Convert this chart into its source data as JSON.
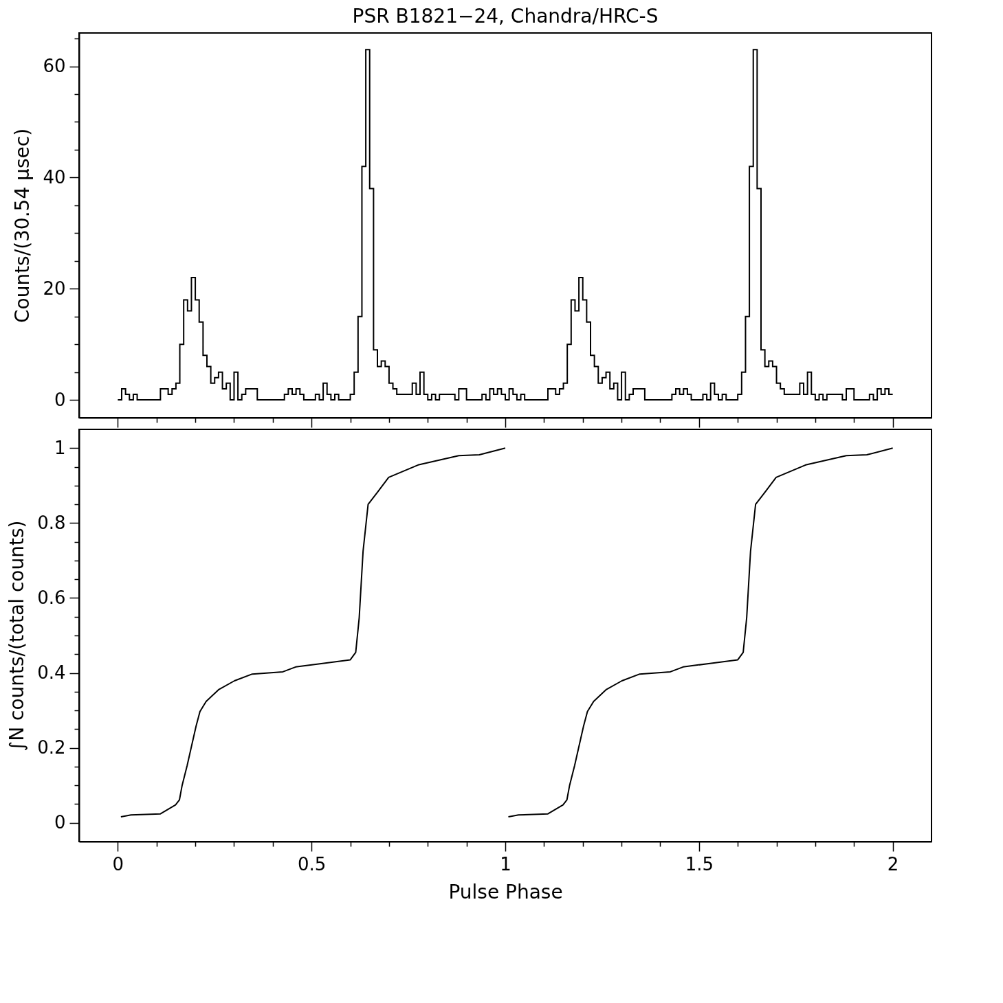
{
  "chart_data": [
    {
      "type": "histogram",
      "title": "PSR B1821−24, Chandra/HRC-S",
      "ylabel": "Counts/(30.54 μsec)",
      "color": "#000000",
      "bins": [
        0,
        0.01,
        0.02,
        0.03,
        0.04,
        0.05,
        0.06,
        0.07,
        0.08,
        0.09,
        0.1,
        0.11,
        0.12,
        0.13,
        0.14,
        0.15,
        0.16,
        0.17,
        0.18,
        0.19,
        0.2,
        0.21,
        0.22,
        0.23,
        0.24,
        0.25,
        0.26,
        0.27,
        0.28,
        0.29,
        0.3,
        0.31,
        0.32,
        0.33,
        0.34,
        0.35,
        0.36,
        0.37,
        0.38,
        0.39,
        0.4,
        0.41,
        0.42,
        0.43,
        0.44,
        0.45,
        0.46,
        0.47,
        0.48,
        0.49,
        0.5,
        0.51,
        0.52,
        0.53,
        0.54,
        0.55,
        0.56,
        0.57,
        0.58,
        0.59,
        0.6,
        0.61,
        0.62,
        0.63,
        0.64,
        0.65,
        0.66,
        0.67,
        0.68,
        0.69,
        0.7,
        0.71,
        0.72,
        0.73,
        0.74,
        0.75,
        0.76,
        0.77,
        0.78,
        0.79,
        0.8,
        0.81,
        0.82,
        0.83,
        0.84,
        0.85,
        0.86,
        0.87,
        0.88,
        0.89,
        0.9,
        0.91,
        0.92,
        0.93,
        0.94,
        0.95,
        0.96,
        0.97,
        0.98,
        0.99,
        1,
        1.01,
        1.02,
        1.03,
        1.04,
        1.05,
        1.06,
        1.07,
        1.08,
        1.09,
        1.1,
        1.11,
        1.12,
        1.13,
        1.14,
        1.15,
        1.16,
        1.17,
        1.18,
        1.19,
        1.2,
        1.21,
        1.22,
        1.23,
        1.24,
        1.25,
        1.26,
        1.27,
        1.28,
        1.29,
        1.3,
        1.31,
        1.32,
        1.33,
        1.34,
        1.35,
        1.36,
        1.37,
        1.38,
        1.39,
        1.4,
        1.41,
        1.42,
        1.43,
        1.44,
        1.45,
        1.46,
        1.47,
        1.48,
        1.49,
        1.5,
        1.51,
        1.52,
        1.53,
        1.54,
        1.55,
        1.56,
        1.57,
        1.58,
        1.59,
        1.6,
        1.61,
        1.62,
        1.63,
        1.64,
        1.65,
        1.66,
        1.67,
        1.68,
        1.69,
        1.7,
        1.71,
        1.72,
        1.73,
        1.74,
        1.75,
        1.76,
        1.77,
        1.78,
        1.79,
        1.8,
        1.81,
        1.82,
        1.83,
        1.84,
        1.85,
        1.86,
        1.87,
        1.88,
        1.89,
        1.9,
        1.91,
        1.92,
        1.93,
        1.94,
        1.95,
        1.96,
        1.97,
        1.98,
        1.99,
        2
      ],
      "values": [
        0,
        2,
        1,
        0,
        1,
        0,
        0,
        0,
        0,
        0,
        0,
        2,
        2,
        1,
        2,
        3,
        10,
        18,
        16,
        22,
        18,
        14,
        8,
        6,
        3,
        4,
        5,
        2,
        3,
        0,
        5,
        0,
        1,
        2,
        2,
        2,
        0,
        0,
        0,
        0,
        0,
        0,
        0,
        1,
        2,
        1,
        2,
        1,
        0,
        0,
        0,
        1,
        0,
        3,
        1,
        0,
        1,
        0,
        0,
        0,
        1,
        5,
        15,
        42,
        63,
        38,
        9,
        6,
        7,
        6,
        3,
        2,
        1,
        1,
        1,
        1,
        3,
        1,
        5,
        1,
        0,
        1,
        0,
        1,
        1,
        1,
        1,
        0,
        2,
        2,
        0,
        0,
        0,
        0,
        1,
        0,
        2,
        1,
        2,
        1,
        0,
        2,
        1,
        0,
        1,
        0,
        0,
        0,
        0,
        0,
        0,
        2,
        2,
        1,
        2,
        3,
        10,
        18,
        16,
        22,
        18,
        14,
        8,
        6,
        3,
        4,
        5,
        2,
        3,
        0,
        5,
        0,
        1,
        2,
        2,
        2,
        0,
        0,
        0,
        0,
        0,
        0,
        0,
        1,
        2,
        1,
        2,
        1,
        0,
        0,
        0,
        1,
        0,
        3,
        1,
        0,
        1,
        0,
        0,
        0,
        1,
        5,
        15,
        42,
        63,
        38,
        9,
        6,
        7,
        6,
        3,
        2,
        1,
        1,
        1,
        1,
        3,
        1,
        5,
        1,
        0,
        1,
        0,
        1,
        1,
        1,
        1,
        0,
        2,
        2,
        0,
        0,
        0,
        0,
        1,
        0,
        2,
        1,
        2,
        1
      ],
      "xlim": [
        -0.1,
        2.1
      ],
      "ylim": [
        -3.2,
        66
      ],
      "xticks": [
        {
          "value": 0.1,
          "label": null
        },
        {
          "value": 0.2,
          "label": null
        },
        {
          "value": 0.3,
          "label": null
        },
        {
          "value": 0.4,
          "label": null
        },
        0,
        0.5,
        1,
        1.5,
        2,
        {
          "value": 0.6,
          "label": null
        },
        {
          "value": 0.7,
          "label": null
        },
        {
          "value": 0.8,
          "label": null
        },
        {
          "value": 0.9,
          "label": null
        },
        {
          "value": 1.1,
          "label": null
        },
        {
          "value": 1.2,
          "label": null
        },
        {
          "value": 1.3,
          "label": null
        },
        {
          "value": 1.4,
          "label": null
        },
        {
          "value": 1.6,
          "label": null
        },
        {
          "value": 1.7,
          "label": null
        },
        {
          "value": 1.8,
          "label": null
        },
        {
          "value": 1.9,
          "label": null
        }
      ],
      "yticks": [
        0,
        20,
        40,
        60,
        {
          "value": 5,
          "label": null
        },
        {
          "value": 10,
          "label": null
        },
        {
          "value": 15,
          "label": null
        },
        {
          "value": 25,
          "label": null
        },
        {
          "value": 30,
          "label": null
        },
        {
          "value": 35,
          "label": null
        },
        {
          "value": 45,
          "label": null
        },
        {
          "value": 50,
          "label": null
        },
        {
          "value": 55,
          "label": null
        },
        {
          "value": 65,
          "label": null
        }
      ],
      "tick_labels": "y"
    },
    {
      "type": "line",
      "xlabel": "Pulse Phase",
      "ylabel": "∫N counts/(total counts)",
      "series": [
        {
          "color": "#000000",
          "x": [
            0.008,
            0.034,
            0.11,
            0.149,
            0.159,
            0.166,
            0.179,
            0.189,
            0.202,
            0.212,
            0.228,
            0.261,
            0.301,
            0.347,
            0.426,
            0.459,
            0.525,
            0.6,
            0.614,
            0.623,
            0.633,
            0.646,
            0.67,
            0.699,
            0.775,
            0.88,
            0.933,
            1.0
          ],
          "values": [
            0.016,
            0.021,
            0.024,
            0.048,
            0.061,
            0.1,
            0.153,
            0.199,
            0.258,
            0.297,
            0.324,
            0.356,
            0.379,
            0.397,
            0.403,
            0.416,
            0.425,
            0.435,
            0.455,
            0.547,
            0.725,
            0.85,
            0.882,
            0.922,
            0.955,
            0.98,
            0.982,
            1.0
          ]
        },
        {
          "color": "#000000",
          "x": [
            1.008,
            1.034,
            1.11,
            1.149,
            1.159,
            1.166,
            1.179,
            1.189,
            1.202,
            1.212,
            1.228,
            1.261,
            1.301,
            1.347,
            1.426,
            1.459,
            1.525,
            1.6,
            1.614,
            1.623,
            1.633,
            1.646,
            1.67,
            1.699,
            1.775,
            1.88,
            1.933,
            2.0
          ],
          "values": [
            0.016,
            0.021,
            0.024,
            0.048,
            0.061,
            0.1,
            0.153,
            0.199,
            0.258,
            0.297,
            0.324,
            0.356,
            0.379,
            0.397,
            0.403,
            0.416,
            0.425,
            0.435,
            0.455,
            0.547,
            0.725,
            0.85,
            0.882,
            0.922,
            0.955,
            0.98,
            0.982,
            1.0
          ]
        }
      ],
      "xlim": [
        -0.1,
        2.1
      ],
      "ylim": [
        -0.05,
        1.05
      ],
      "xticks": [
        {
          "value": 0.1,
          "label": null
        },
        {
          "value": 0.2,
          "label": null
        },
        {
          "value": 0.3,
          "label": null
        },
        {
          "value": 0.4,
          "label": null
        },
        0,
        0.5,
        1,
        1.5,
        2,
        {
          "value": 0.6,
          "label": null
        },
        {
          "value": 0.7,
          "label": null
        },
        {
          "value": 0.8,
          "label": null
        },
        {
          "value": 0.9,
          "label": null
        },
        {
          "value": 1.1,
          "label": null
        },
        {
          "value": 1.2,
          "label": null
        },
        {
          "value": 1.3,
          "label": null
        },
        {
          "value": 1.4,
          "label": null
        },
        {
          "value": 1.6,
          "label": null
        },
        {
          "value": 1.7,
          "label": null
        },
        {
          "value": 1.8,
          "label": null
        },
        {
          "value": 1.9,
          "label": null
        }
      ],
      "yticks": [
        0,
        0.2,
        0.4,
        0.6,
        0.8,
        1,
        {
          "value": 0.05,
          "label": null
        },
        {
          "value": 0.1,
          "label": null
        },
        {
          "value": 0.15,
          "label": null
        },
        {
          "value": 0.25,
          "label": null
        },
        {
          "value": 0.3,
          "label": null
        },
        {
          "value": 0.35,
          "label": null
        },
        {
          "value": 0.45,
          "label": null
        },
        {
          "value": 0.5,
          "label": null
        },
        {
          "value": 0.55,
          "label": null
        },
        {
          "value": 0.65,
          "label": null
        },
        {
          "value": 0.7,
          "label": null
        },
        {
          "value": 0.75,
          "label": null
        },
        {
          "value": 0.85,
          "label": null
        },
        {
          "value": 0.9,
          "label": null
        },
        {
          "value": 0.95,
          "label": null
        }
      ]
    }
  ]
}
